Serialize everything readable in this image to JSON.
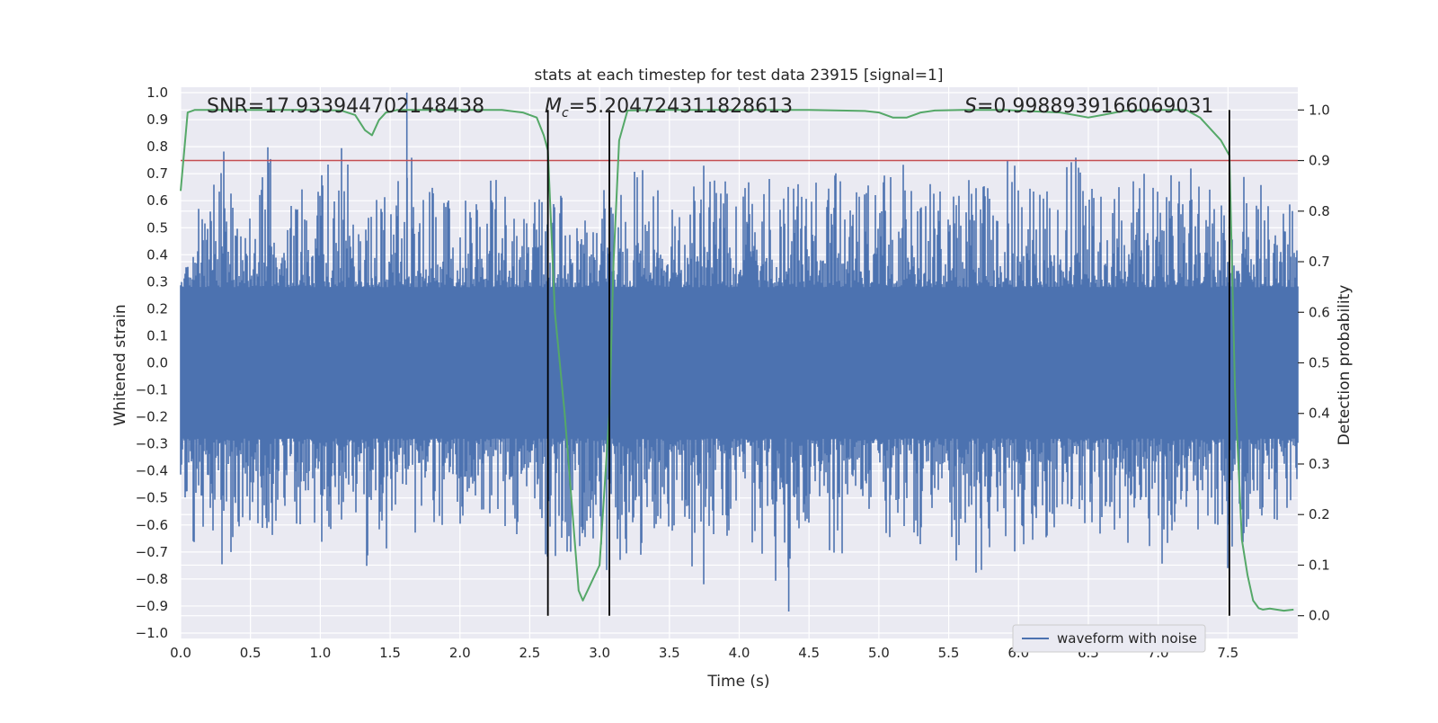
{
  "chart_data": {
    "type": "line",
    "title": "stats at each timestep for test data 23915 [signal=1]",
    "xlabel": "Time (s)",
    "ylabel": "Whitened strain",
    "y2label": "Detection probability",
    "xlim": [
      0.0,
      8.0
    ],
    "ylim": [
      -1.02,
      1.02
    ],
    "y2lim": [
      -0.045,
      1.045
    ],
    "x_ticks": [
      "0.0",
      "0.5",
      "1.0",
      "1.5",
      "2.0",
      "2.5",
      "3.0",
      "3.5",
      "4.0",
      "4.5",
      "5.0",
      "5.5",
      "6.0",
      "6.5",
      "7.0",
      "7.5"
    ],
    "y_ticks": [
      "1.0",
      "0.9",
      "0.8",
      "0.7",
      "0.6",
      "0.5",
      "0.4",
      "0.3",
      "0.2",
      "0.1",
      "0.0",
      "−0.1",
      "−0.2",
      "−0.3",
      "−0.4",
      "−0.5",
      "−0.6",
      "−0.7",
      "−0.8",
      "−0.9",
      "−1.0"
    ],
    "y2_ticks": [
      "1.0",
      "0.9",
      "0.8",
      "0.7",
      "0.6",
      "0.5",
      "0.4",
      "0.3",
      "0.2",
      "0.1",
      "0.0"
    ],
    "grid": true,
    "legend": {
      "placement": "lower-right",
      "entries": [
        "waveform with noise"
      ]
    },
    "annotations": {
      "snr": "SNR=17.933944702148438",
      "mc_symbol": "M",
      "mc_sub": "c",
      "mc_value": "=5.204724311828613",
      "s_symbol": "S",
      "s_value": "=0.9988939166069031"
    },
    "threshold": {
      "axis": "y2",
      "value": 0.9,
      "color": "#c44e52"
    },
    "vertical_lines": [
      2.63,
      3.07,
      7.51
    ],
    "series": [
      {
        "name": "waveform with noise",
        "axis": "y",
        "color": "#4c72b0",
        "x_range": [
          0.0,
          8.0
        ],
        "envelope_max": [
          0.55,
          0.6,
          0.66,
          0.91,
          0.62,
          0.64,
          0.82,
          0.7,
          0.68,
          0.78,
          0.72,
          0.83,
          0.74,
          0.66,
          0.76,
          0.72,
          1.0,
          0.62,
          0.66,
          0.7,
          0.72,
          0.68,
          0.8,
          0.65,
          0.62,
          0.67,
          0.6,
          0.65,
          0.6,
          0.58,
          0.75,
          0.62,
          0.7,
          0.78,
          0.65,
          0.58,
          0.65,
          0.74,
          0.69,
          0.68,
          0.78,
          0.82,
          0.6,
          0.7,
          0.7,
          0.68,
          0.73,
          0.72,
          0.62,
          0.68,
          0.79,
          0.79,
          0.62,
          0.7,
          0.65,
          0.67,
          0.81,
          0.65,
          0.72,
          0.79,
          0.73,
          0.7,
          0.7,
          0.8,
          0.74,
          0.7,
          0.7,
          0.78,
          0.7,
          0.8,
          0.72,
          0.7,
          0.78,
          0.66,
          0.7,
          0.73,
          0.78,
          0.63,
          0.68,
          0.62
        ],
        "envelope_min": [
          -0.55,
          -0.7,
          -0.6,
          -0.83,
          -0.62,
          -0.6,
          -0.62,
          -0.66,
          -0.6,
          -0.64,
          -0.67,
          -0.6,
          -0.65,
          -0.75,
          -0.81,
          -0.6,
          -0.62,
          -0.64,
          -0.7,
          -0.64,
          -0.66,
          -0.6,
          -0.6,
          -0.62,
          -0.67,
          -0.75,
          -0.76,
          -0.78,
          -0.68,
          -0.7,
          -0.82,
          -0.75,
          -0.7,
          -0.74,
          -0.7,
          -0.72,
          -0.78,
          -0.82,
          -0.65,
          -0.68,
          -0.6,
          -0.8,
          -0.88,
          -0.92,
          -0.65,
          -0.66,
          -0.7,
          -0.72,
          -0.62,
          -0.64,
          -0.65,
          -0.62,
          -0.68,
          -0.7,
          -0.6,
          -0.78,
          -0.78,
          -0.8,
          -0.63,
          -0.71,
          -0.67,
          -0.66,
          -0.65,
          -0.6,
          -0.6,
          -0.65,
          -0.62,
          -0.7,
          -0.8,
          -0.82,
          -0.68,
          -0.62,
          -0.64,
          -0.58,
          -0.83,
          -0.68,
          -0.62,
          -0.62,
          -0.56,
          -0.5
        ]
      },
      {
        "name": "",
        "axis": "y2",
        "color": "#55a868",
        "x": [
          0.0,
          0.05,
          0.1,
          0.2,
          0.5,
          0.8,
          1.0,
          1.15,
          1.25,
          1.32,
          1.37,
          1.42,
          1.47,
          1.55,
          1.7,
          2.0,
          2.3,
          2.45,
          2.55,
          2.6,
          2.63,
          2.68,
          2.75,
          2.85,
          2.88,
          3.0,
          3.07,
          3.1,
          3.14,
          3.2,
          3.4,
          4.0,
          4.5,
          4.9,
          5.0,
          5.1,
          5.2,
          5.3,
          5.4,
          5.6,
          5.9,
          6.3,
          6.5,
          6.6,
          6.75,
          6.9,
          7.2,
          7.3,
          7.45,
          7.51,
          7.55,
          7.6,
          7.64,
          7.68,
          7.72,
          7.75,
          7.8,
          7.9,
          7.97
        ],
        "y": [
          0.84,
          0.995,
          1.0,
          1.0,
          1.0,
          1.0,
          1.0,
          0.999,
          0.99,
          0.96,
          0.95,
          0.98,
          0.995,
          1.0,
          1.0,
          1.0,
          1.0,
          0.995,
          0.985,
          0.95,
          0.92,
          0.6,
          0.4,
          0.05,
          0.03,
          0.1,
          0.4,
          0.7,
          0.94,
          0.999,
          1.0,
          1.0,
          1.0,
          0.998,
          0.995,
          0.985,
          0.985,
          0.995,
          0.999,
          1.0,
          1.0,
          0.995,
          0.985,
          0.99,
          0.998,
          1.0,
          1.0,
          0.985,
          0.94,
          0.91,
          0.45,
          0.15,
          0.08,
          0.03,
          0.015,
          0.012,
          0.014,
          0.01,
          0.012
        ]
      }
    ]
  }
}
